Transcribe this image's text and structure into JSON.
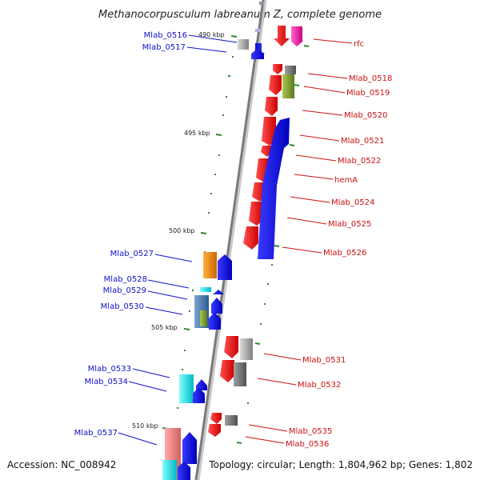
{
  "title": "Methanocorpusculum labreanum Z, complete genome",
  "footer": {
    "accession": "Accession: NC_008942",
    "summary": "Topology: circular; Length: 1,804,962 bp; Genes: 1,802"
  },
  "scale_labels": [
    {
      "id": "tick-490",
      "text": "490 kbp"
    },
    {
      "id": "tick-495",
      "text": "495 kbp"
    },
    {
      "id": "tick-500",
      "text": "500 kbp"
    },
    {
      "id": "tick-505",
      "text": "505 kbp"
    },
    {
      "id": "tick-510",
      "text": "510 kbp"
    }
  ],
  "gene_labels": {
    "left": [
      "Mlab_0516",
      "Mlab_0517",
      "Mlab_0527",
      "Mlab_0528",
      "Mlab_0529",
      "Mlab_0530",
      "Mlab_0533",
      "Mlab_0534",
      "Mlab_0537"
    ],
    "right": [
      "rfc",
      "Mlab_0518",
      "Mlab_0519",
      "Mlab_0520",
      "Mlab_0521",
      "Mlab_0522",
      "hemA",
      "Mlab_0524",
      "Mlab_0525",
      "Mlab_0526",
      "Mlab_0531",
      "Mlab_0532",
      "Mlab_0535",
      "Mlab_0536"
    ]
  },
  "colors": {
    "backbone": "#8c8c8c",
    "tick": "#2e8b2e",
    "left_label": "#1010cc",
    "right_label": "#cc1010",
    "forward_gene": "#1010ee",
    "reverse_gene": "#ee1010",
    "grey_gene": "#a0a0a0",
    "cyan_gene": "#00dddd",
    "orange_gene": "#ee8800",
    "olive_gene": "#7a9a30",
    "magenta_gene": "#ee22aa",
    "pink_gene": "#ee8080",
    "steel_gene": "#4a80b0"
  }
}
